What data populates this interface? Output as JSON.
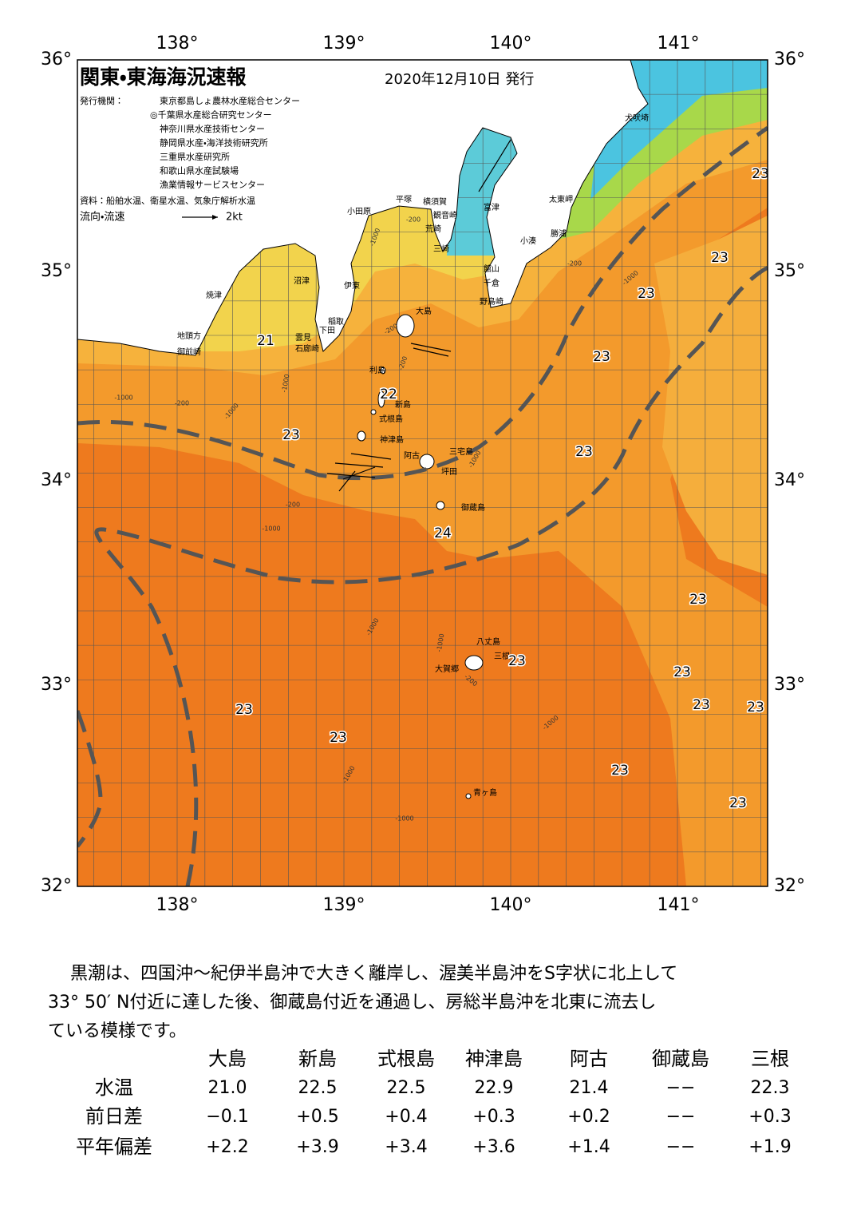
{
  "header": {
    "title": "関東・東海海況速報",
    "date": "2020年12月10日 発行",
    "issuer_label": "発行機関：",
    "issuers": [
      "東京都島しょ農林水産総合センター",
      "◎千葉県水産総合研究センター",
      "神奈川県水産技術センター",
      "静岡県水産・海洋技術研究所",
      "三重県水産研究所",
      "和歌山県水産試験場",
      "漁業情報サービスセンター"
    ],
    "source": "資料：船舶水温、衛星水温、気象庁解析水温",
    "legend_label": "流向・流速",
    "legend_speed": "2kt"
  },
  "map": {
    "lon_labels": [
      "138°",
      "139°",
      "140°",
      "141°"
    ],
    "lat_labels": [
      "36°",
      "35°",
      "34°",
      "33°",
      "32°"
    ],
    "places": [
      "犬吠埼",
      "太東岬",
      "勝浦",
      "小湊",
      "富津",
      "横須賀",
      "平塚",
      "観音崎",
      "荒崎",
      "三崎",
      "小田原",
      "館山",
      "千倉",
      "野島崎",
      "沼津",
      "伊東",
      "焼津",
      "稲取",
      "下田",
      "雲見",
      "石廊崎",
      "地頭方",
      "御前崎",
      "大島",
      "利島",
      "新島",
      "式根島",
      "神津島",
      "三宅島",
      "阿古",
      "坪田",
      "御蔵島",
      "八丈島",
      "三根",
      "大賀郷",
      "青ヶ島"
    ],
    "temperature_labels": [
      23,
      23,
      23,
      21,
      23,
      22,
      23,
      23,
      24,
      23,
      23,
      23,
      23,
      23,
      23,
      23,
      23,
      23
    ],
    "depth_labels": [
      "-1000",
      "-200",
      "-200",
      "-1000",
      "-200",
      "-1000",
      "-1000",
      "-200",
      "-1000",
      "-1000",
      "-1000",
      "-200",
      "-1000",
      "-1000",
      "-1000",
      "-1000",
      "-200",
      "-1000",
      "-200"
    ]
  },
  "description": [
    "黒潮は、四国沖～紀伊半島沖で大きく離岸し、渥美半島沖をS字状に北上して",
    "33° 50′ N付近に達した後、御蔵島付近を通過し、房総半島沖を北東に流去し",
    "ている模様です。"
  ],
  "table": {
    "columns": [
      "大島",
      "新島",
      "式根島",
      "神津島",
      "阿古",
      "御蔵島",
      "三根"
    ],
    "rows": [
      {
        "label": "水温",
        "values": [
          "21.0",
          "22.5",
          "22.5",
          "22.9",
          "21.4",
          "−−",
          "22.3"
        ]
      },
      {
        "label": "前日差",
        "values": [
          "−0.1",
          "+0.5",
          "+0.4",
          "+0.3",
          "+0.2",
          "−−",
          "+0.3"
        ]
      },
      {
        "label": "平年偏差",
        "values": [
          "+2.2",
          "+3.9",
          "+3.4",
          "+3.6",
          "+1.4",
          "−−",
          "+1.9"
        ]
      }
    ]
  }
}
